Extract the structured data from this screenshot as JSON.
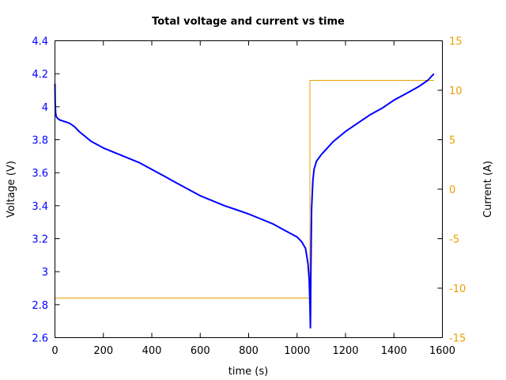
{
  "chart_data": {
    "type": "line",
    "title": "Total voltage and current vs time",
    "xlabel": "time (s)",
    "ylabel": "Voltage (V)",
    "y2label": "Current (A)",
    "xlim": [
      0,
      1600
    ],
    "ylim": [
      2.6,
      4.4
    ],
    "y2lim": [
      -15,
      15
    ],
    "xticks": [
      0,
      200,
      400,
      600,
      800,
      1000,
      1200,
      1400,
      1600
    ],
    "yticks": [
      2.6,
      2.8,
      3,
      3.2,
      3.4,
      3.6,
      3.8,
      4,
      4.2,
      4.4
    ],
    "ytick_labels": [
      "2.6",
      "2.8",
      "3",
      "3.2",
      "3.4",
      "3.6",
      "3.8",
      "4",
      "4.2",
      "4.4"
    ],
    "y2ticks": [
      -15,
      -10,
      -5,
      0,
      5,
      10,
      15
    ],
    "y2tick_labels": [
      "-15",
      "-10",
      "-5",
      "0",
      "5",
      "10",
      "15"
    ],
    "grid": false,
    "legend": null,
    "series": [
      {
        "name": "Voltage",
        "axis": "left",
        "color": "#0000ff",
        "x": [
          0,
          1,
          3,
          6,
          10,
          20,
          40,
          60,
          80,
          100,
          150,
          200,
          250,
          300,
          350,
          400,
          450,
          500,
          550,
          600,
          650,
          700,
          750,
          800,
          850,
          900,
          950,
          1000,
          1020,
          1035,
          1045,
          1050,
          1053,
          1055,
          1057,
          1060,
          1065,
          1070,
          1080,
          1100,
          1150,
          1200,
          1250,
          1300,
          1350,
          1400,
          1450,
          1500,
          1540,
          1565
        ],
        "values": [
          4.14,
          4.02,
          3.96,
          3.94,
          3.93,
          3.92,
          3.91,
          3.9,
          3.88,
          3.85,
          3.79,
          3.75,
          3.72,
          3.69,
          3.66,
          3.62,
          3.58,
          3.54,
          3.5,
          3.46,
          3.43,
          3.4,
          3.375,
          3.35,
          3.32,
          3.29,
          3.25,
          3.21,
          3.18,
          3.14,
          3.05,
          2.95,
          2.8,
          2.66,
          3.0,
          3.38,
          3.55,
          3.62,
          3.67,
          3.71,
          3.79,
          3.85,
          3.9,
          3.95,
          3.99,
          4.04,
          4.08,
          4.12,
          4.16,
          4.2
        ]
      },
      {
        "name": "Current",
        "axis": "right",
        "color": "#e8a000",
        "x": [
          0,
          1053,
          1053,
          1565
        ],
        "values": [
          -11,
          -11,
          11,
          11
        ]
      }
    ]
  },
  "colors": {
    "voltage": "#0000ff",
    "current": "#e8a000",
    "axes": "#000000"
  }
}
